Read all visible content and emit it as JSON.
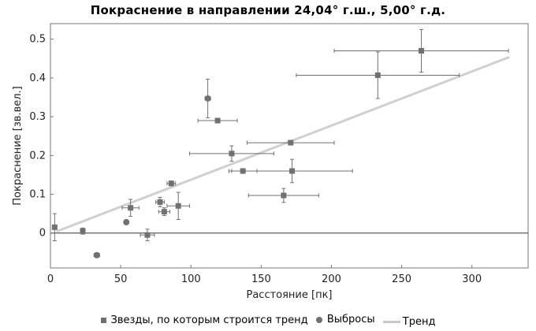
{
  "chart_data": {
    "type": "scatter",
    "title": "Покраснение в направлении 24,04° г.ш., 5,00° г.д.",
    "xlabel": "Расстояние [пк]",
    "ylabel": "Покраснение [зв.вел.]",
    "xlim": [
      0,
      340
    ],
    "ylim": [
      -0.09,
      0.54
    ],
    "xticks": [
      0,
      50,
      100,
      150,
      200,
      250,
      300
    ],
    "xtick_labels": [
      "0",
      "50",
      "100",
      "150",
      "200",
      "250",
      "300"
    ],
    "yticks": [
      0,
      0.1,
      0.2,
      0.3,
      0.4,
      0.5
    ],
    "ytick_labels": [
      "0",
      "0.1",
      "0.2",
      "0.3",
      "0.4",
      "0.5"
    ],
    "grid": false,
    "legend_position": "bottom-center",
    "colors": {
      "marker": "#707070",
      "trend": "#d0d0d0",
      "zero_line": "#333333"
    },
    "series": [
      {
        "name": "Звезды, по которым строится тренд",
        "marker": "square",
        "points": [
          {
            "x": 3,
            "y": 0.015,
            "xerr": 0,
            "yerr": 0.035
          },
          {
            "x": 23,
            "y": 0.005,
            "xerr": 0,
            "yerr": 0.008
          },
          {
            "x": 57,
            "y": 0.065,
            "xerr": 6,
            "yerr": 0.022
          },
          {
            "x": 69,
            "y": -0.005,
            "xerr": 5,
            "yerr": 0.015
          },
          {
            "x": 78,
            "y": 0.08,
            "xerr": 3,
            "yerr": 0.012
          },
          {
            "x": 81,
            "y": 0.055,
            "xerr": 4,
            "yerr": 0.01
          },
          {
            "x": 86,
            "y": 0.128,
            "xerr": 3,
            "yerr": 0.006
          },
          {
            "x": 91,
            "y": 0.07,
            "xerr": 8,
            "yerr": 0.035
          },
          {
            "x": 119,
            "y": 0.29,
            "xerr": 14,
            "yerr": 0
          },
          {
            "x": 129,
            "y": 0.205,
            "xerr": 30,
            "yerr": 0.02
          },
          {
            "x": 137,
            "y": 0.16,
            "xerr": 10,
            "yerr": 0.006
          },
          {
            "x": 166,
            "y": 0.097,
            "xerr": 25,
            "yerr": 0.018
          },
          {
            "x": 171,
            "y": 0.233,
            "xerr": 31,
            "yerr": 0
          },
          {
            "x": 172,
            "y": 0.16,
            "xerr": 43,
            "yerr": 0.03
          },
          {
            "x": 233,
            "y": 0.407,
            "xerr": 58,
            "yerr": 0.06
          },
          {
            "x": 264,
            "y": 0.47,
            "xerr": 62,
            "yerr": 0.055
          }
        ]
      },
      {
        "name": "Выбросы",
        "marker": "circle",
        "points": [
          {
            "x": 33,
            "y": -0.057,
            "xerr": 2,
            "yerr": 0
          },
          {
            "x": 54,
            "y": 0.028,
            "xerr": 1,
            "yerr": 0.006
          },
          {
            "x": 112,
            "y": 0.347,
            "xerr": 2,
            "yerr": 0.05
          }
        ]
      },
      {
        "name": "Тренд",
        "marker": "line",
        "points": [
          {
            "x": 5,
            "y": 0.005
          },
          {
            "x": 326,
            "y": 0.453
          }
        ]
      }
    ]
  }
}
